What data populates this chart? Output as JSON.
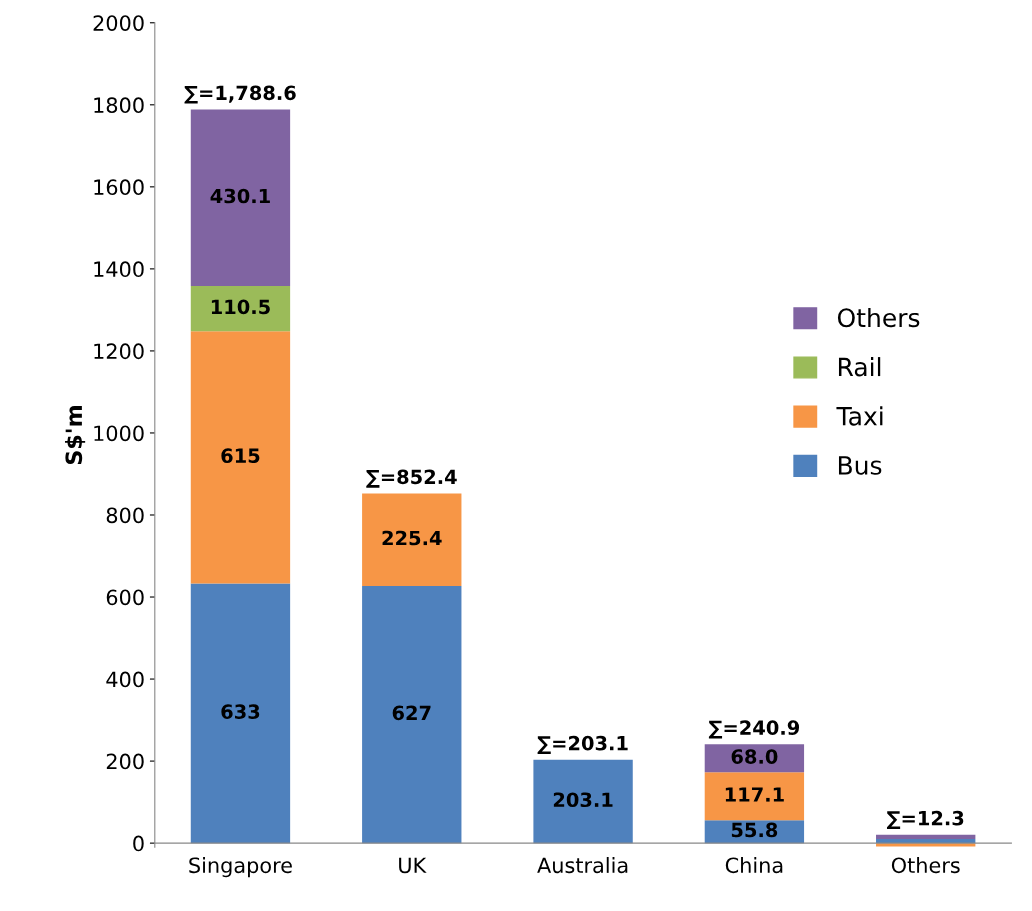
{
  "chart_data": {
    "type": "bar",
    "stacked": true,
    "ylabel": "S$'m",
    "categories": [
      "Singapore",
      "UK",
      "Australia",
      "China",
      "Others"
    ],
    "series": [
      {
        "name": "Bus",
        "color": "#4f81bd",
        "values": [
          633,
          627,
          203.1,
          55.8,
          10.3
        ],
        "value_labels": [
          "633",
          "627",
          "203.1",
          "55.8",
          null
        ]
      },
      {
        "name": "Taxi",
        "color": "#f79646",
        "values": [
          615,
          225.4,
          0,
          117.1,
          -8
        ],
        "value_labels": [
          "615",
          "225.4",
          null,
          "117.1",
          null
        ]
      },
      {
        "name": "Rail",
        "color": "#9bbb59",
        "values": [
          110.5,
          0,
          0,
          0,
          0
        ],
        "value_labels": [
          "110.5",
          null,
          null,
          null,
          null
        ]
      },
      {
        "name": "Others",
        "color": "#8064a2",
        "values": [
          430.1,
          0,
          0,
          68.0,
          10
        ],
        "value_labels": [
          "430.1",
          null,
          null,
          "68.0",
          null
        ]
      }
    ],
    "totals": [
      "∑=1,788.6",
      "∑=852.4",
      "∑=203.1",
      "∑=240.9",
      "∑=12.3"
    ],
    "ylim": [
      -10,
      2000
    ],
    "yticks": [
      0,
      200,
      400,
      600,
      800,
      1000,
      1200,
      1400,
      1600,
      1800,
      2000
    ],
    "grid": false,
    "legend": "right"
  }
}
